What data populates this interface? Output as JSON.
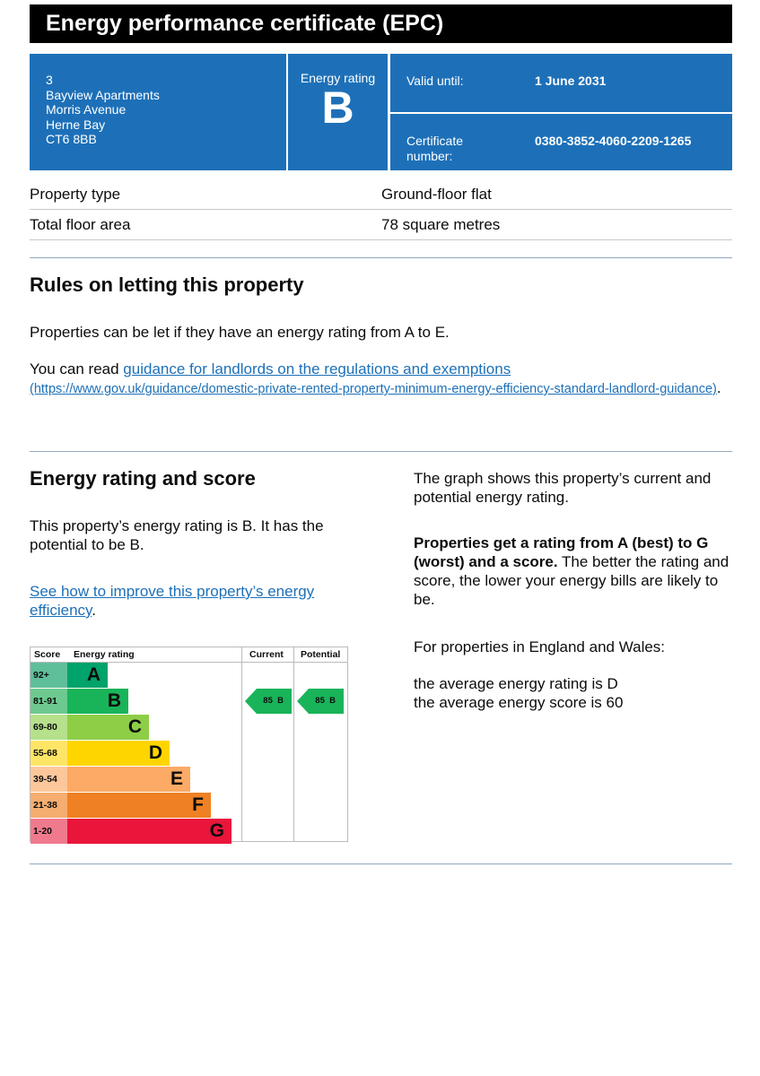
{
  "title": "Energy performance certificate (EPC)",
  "address": [
    "3",
    "Bayview Apartments",
    "Morris Avenue",
    "Herne Bay",
    "CT6 8BB"
  ],
  "rating_box": {
    "label": "Energy rating",
    "value": "B"
  },
  "valid": {
    "label": "Valid until:",
    "value": "1 June 2031"
  },
  "certificate": {
    "label": "Certificate number:",
    "value": "0380-3852-4060-2209-1265"
  },
  "property": [
    {
      "label": "Property type",
      "value": "Ground-floor flat"
    },
    {
      "label": "Total floor area",
      "value": "78 square metres"
    }
  ],
  "letting": {
    "heading": "Rules on letting this property",
    "p1": "Properties can be let if they have an energy rating from A to E.",
    "p2_pre": "You can read ",
    "p2_link": "guidance for landlords on the regulations and exemptions",
    "p2_url": "(https://www.gov.uk/guidance/domestic-private-rented-property-minimum-energy-efficiency-standard-landlord-guidance)",
    "p2_post": "."
  },
  "energy": {
    "heading": "Energy rating and score",
    "p1": "This property’s energy rating is B. It has the potential to be B.",
    "link": "See how to improve this property’s energy efficiency",
    "link_post": ".",
    "r1": "The graph shows this property’s current and potential energy rating.",
    "r2_bold": "Properties get a rating from A (best) to G (worst) and a score.",
    "r2": " The better the rating and score, the lower your energy bills are likely to be.",
    "r3": "For properties in England and Wales:",
    "r4": "the average energy rating is D",
    "r5": "the average energy score is 60"
  },
  "chart_data": {
    "type": "table",
    "headers": [
      "Score",
      "Energy rating",
      "Current",
      "Potential"
    ],
    "bands": [
      {
        "score": "92+",
        "letter": "A",
        "color": "#00a36b",
        "score_bg": "#5fbf9b"
      },
      {
        "score": "81-91",
        "letter": "B",
        "color": "#19b459",
        "score_bg": "#6dc98f"
      },
      {
        "score": "69-80",
        "letter": "C",
        "color": "#8dce46",
        "score_bg": "#b6e08b"
      },
      {
        "score": "55-68",
        "letter": "D",
        "color": "#ffd500",
        "score_bg": "#ffe566"
      },
      {
        "score": "39-54",
        "letter": "E",
        "color": "#fcaa65",
        "score_bg": "#fdc79b"
      },
      {
        "score": "21-38",
        "letter": "F",
        "color": "#ef8023",
        "score_bg": "#f5ad70"
      },
      {
        "score": "1-20",
        "letter": "G",
        "color": "#e9153b",
        "score_bg": "#f07a8d"
      }
    ],
    "current": {
      "score": 85,
      "letter": "B",
      "label": "85  B"
    },
    "potential": {
      "score": 85,
      "letter": "B",
      "label": "85  B"
    },
    "arrow_color": "#19b459"
  }
}
